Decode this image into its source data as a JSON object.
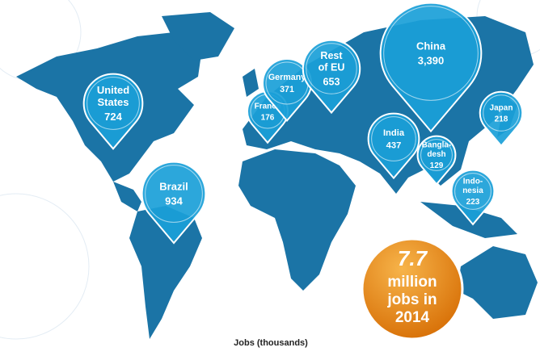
{
  "pins": [
    {
      "label": [
        "United",
        "States"
      ],
      "value": 724,
      "value_label": "724"
    },
    {
      "label": [
        "Brazil"
      ],
      "value": 934,
      "value_label": "934"
    },
    {
      "label": [
        "France"
      ],
      "value": 176,
      "value_label": "176"
    },
    {
      "label": [
        "Germany"
      ],
      "value": 371,
      "value_label": "371"
    },
    {
      "label": [
        "Rest",
        "of EU"
      ],
      "value": 653,
      "value_label": "653"
    },
    {
      "label": [
        "China"
      ],
      "value": 3390,
      "value_label": "3,390"
    },
    {
      "label": [
        "Japan"
      ],
      "value": 218,
      "value_label": "218"
    },
    {
      "label": [
        "India"
      ],
      "value": 437,
      "value_label": "437"
    },
    {
      "label": [
        "Bangla-",
        "desh"
      ],
      "value": 129,
      "value_label": "129"
    },
    {
      "label": [
        "Indo-",
        "nesia"
      ],
      "value": 223,
      "value_label": "223"
    }
  ],
  "callout": {
    "number": "7.7",
    "text": [
      "million",
      "jobs in",
      "2014"
    ]
  },
  "caption": "Jobs (thousands)"
}
